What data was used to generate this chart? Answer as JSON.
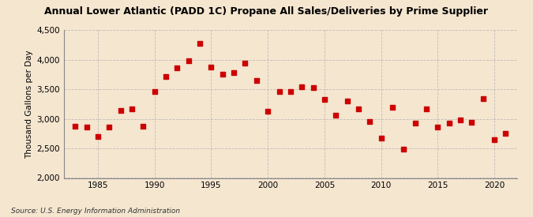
{
  "title": "Annual Lower Atlantic (PADD 1C) Propane All Sales/Deliveries by Prime Supplier",
  "ylabel": "Thousand Gallons per Day",
  "source": "Source: U.S. Energy Information Administration",
  "years": [
    1983,
    1984,
    1985,
    1986,
    1987,
    1988,
    1989,
    1990,
    1991,
    1992,
    1993,
    1994,
    1995,
    1996,
    1997,
    1998,
    1999,
    2000,
    2001,
    2002,
    2003,
    2004,
    2005,
    2006,
    2007,
    2008,
    2009,
    2010,
    2011,
    2012,
    2013,
    2014,
    2015,
    2016,
    2017,
    2018,
    2019,
    2020,
    2021
  ],
  "values": [
    2880,
    2860,
    2700,
    2860,
    3140,
    3170,
    2880,
    3460,
    3720,
    3860,
    3980,
    4280,
    3880,
    3760,
    3780,
    3940,
    3650,
    3130,
    3460,
    3470,
    3540,
    3530,
    3330,
    3060,
    3310,
    3170,
    2960,
    2680,
    3190,
    2490,
    2930,
    3170,
    2860,
    2930,
    2980,
    2940,
    3350,
    2650,
    2750
  ],
  "marker_color": "#cc0000",
  "marker_size": 16,
  "bg_color": "#f5e6d0",
  "plot_bg_color": "#f5e6d0",
  "grid_color": "#aaaaaa",
  "ylim": [
    2000,
    4500
  ],
  "yticks": [
    2000,
    2500,
    3000,
    3500,
    4000,
    4500
  ],
  "ytick_labels": [
    "2,000",
    "2,500",
    "3,000",
    "3,500",
    "4,000",
    "4,500"
  ],
  "xlim": [
    1982,
    2022
  ],
  "xticks": [
    1985,
    1990,
    1995,
    2000,
    2005,
    2010,
    2015,
    2020
  ],
  "title_fontsize": 9.0,
  "ylabel_fontsize": 7.5,
  "tick_fontsize": 7.5,
  "source_fontsize": 6.5
}
